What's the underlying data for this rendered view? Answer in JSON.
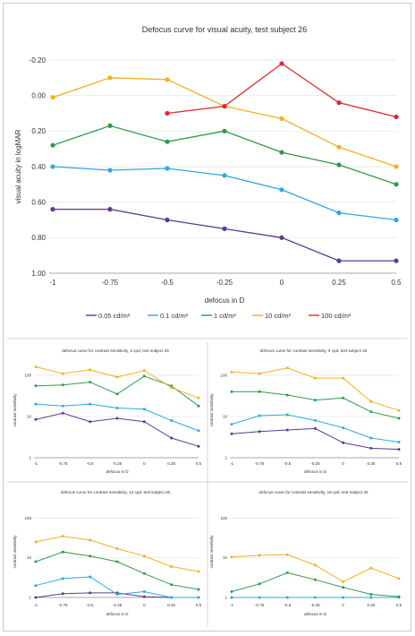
{
  "colors": {
    "purple": "#5b3b8c",
    "blue": "#2fa8e0",
    "green": "#2e9b4a",
    "yellow": "#f2b21f",
    "red": "#e0282e",
    "grid": "#e3e3e3",
    "axis": "#aaaaaa",
    "text": "#333333"
  },
  "chart_data": [
    {
      "type": "line",
      "title": "Defocus curve for visual acuity, test subject 26",
      "xlabel": "defocus in D",
      "ylabel": "visual acuity in logMAR",
      "y_reversed": true,
      "ylim": [
        -0.2,
        1.0
      ],
      "yticks": [
        -0.2,
        0.0,
        0.2,
        0.4,
        0.6,
        0.8,
        1.0
      ],
      "ytick_labels": [
        "-0.20",
        "0.00",
        "0.20",
        "0.40",
        "0.60",
        "0.80",
        "1.00"
      ],
      "x": [
        -1,
        -0.75,
        -0.5,
        -0.25,
        0,
        0.25,
        0.5
      ],
      "xtick_labels": [
        "-1",
        "-0.75",
        "-0.5",
        "-0.25",
        "0",
        "0.25",
        "0.5"
      ],
      "grid": true,
      "legend_position": "bottom",
      "series": [
        {
          "name": "0.05 cd/m²",
          "color": "purple",
          "values": [
            0.64,
            0.64,
            0.7,
            0.75,
            0.8,
            0.93,
            0.93
          ]
        },
        {
          "name": "0.1 cd/m²",
          "color": "blue",
          "values": [
            0.4,
            0.42,
            0.41,
            0.45,
            0.53,
            0.66,
            0.7
          ]
        },
        {
          "name": "1 cd/m²",
          "color": "green",
          "values": [
            0.28,
            0.17,
            0.26,
            0.2,
            0.32,
            0.39,
            0.5
          ]
        },
        {
          "name": "10 cd/m²",
          "color": "yellow",
          "values": [
            0.01,
            -0.1,
            -0.09,
            0.06,
            0.13,
            0.29,
            0.4
          ]
        },
        {
          "name": "100 cd/m²",
          "color": "red",
          "values": [
            null,
            null,
            0.1,
            0.06,
            -0.18,
            0.04,
            0.12
          ]
        }
      ]
    },
    {
      "type": "line",
      "title": "defocus curve for contrast sensitivity, 3 cpd, test subject 26",
      "xlabel": "defocus in D",
      "ylabel": "contrast sensitivity",
      "yscale": "log",
      "ylim": [
        1,
        200
      ],
      "yticks": [
        1,
        10,
        100
      ],
      "ytick_labels": [
        "1",
        "10",
        "100"
      ],
      "x": [
        -1,
        -0.75,
        -0.5,
        -0.25,
        0,
        0.25,
        0.5
      ],
      "xtick_labels": [
        "-1",
        "-0.75",
        "-0.5",
        "-0.25",
        "0",
        "0.25",
        "0.5"
      ],
      "series": [
        {
          "color": "purple",
          "values": [
            8.5,
            12,
            7.5,
            9,
            7.5,
            3,
            1.9
          ]
        },
        {
          "color": "blue",
          "values": [
            20,
            18,
            20,
            16,
            15,
            8,
            4.5
          ]
        },
        {
          "color": "green",
          "values": [
            55,
            58,
            68,
            35,
            95,
            55,
            18
          ]
        },
        {
          "color": "yellow",
          "values": [
            160,
            110,
            135,
            90,
            130,
            50,
            28
          ]
        }
      ]
    },
    {
      "type": "line",
      "title": "defocus curve for contrast sensitivity, 6 cpd, test subject 26",
      "xlabel": "defocus in D",
      "ylabel": "contrast sensitivity",
      "yscale": "log",
      "ylim": [
        1,
        200
      ],
      "yticks": [
        1,
        10,
        100
      ],
      "ytick_labels": [
        "1",
        "10",
        "100"
      ],
      "x": [
        -1,
        -0.75,
        -0.5,
        -0.25,
        0,
        0.25,
        0.5
      ],
      "xtick_labels": [
        "-1",
        "-0.75",
        "-0.5",
        "-0.25",
        "0",
        "0.25",
        "0.5"
      ],
      "series": [
        {
          "color": "purple",
          "values": [
            3.8,
            4.3,
            4.7,
            5.1,
            2.3,
            1.7,
            1.6
          ]
        },
        {
          "color": "blue",
          "values": [
            6.5,
            10.5,
            11,
            8,
            5.3,
            3,
            2.4
          ]
        },
        {
          "color": "green",
          "values": [
            40,
            40,
            33,
            25,
            28,
            13,
            9
          ]
        },
        {
          "color": "yellow",
          "values": [
            120,
            110,
            150,
            85,
            85,
            23,
            14
          ]
        }
      ]
    },
    {
      "type": "line",
      "title": "defocus curve for contrast sensitivity, 12 cpd, test subject 26",
      "xlabel": "defocus in D",
      "ylabel": "contrast sensitivity",
      "yscale": "log",
      "ylim": [
        1,
        200
      ],
      "yticks": [
        1,
        10,
        100
      ],
      "ytick_labels": [
        "1",
        "10",
        "100"
      ],
      "x": [
        -1,
        -0.75,
        -0.5,
        -0.25,
        0,
        0.25,
        0.5
      ],
      "xtick_labels": [
        "-1",
        "-0.75",
        "-0.5",
        "-0.25",
        "0",
        "0.25",
        "0.5"
      ],
      "series": [
        {
          "color": "purple",
          "values": [
            1,
            1.25,
            1.3,
            1.3,
            1.05,
            1,
            1
          ]
        },
        {
          "color": "blue",
          "values": [
            2,
            3,
            3.3,
            1.2,
            1.4,
            1,
            1
          ]
        },
        {
          "color": "green",
          "values": [
            8,
            14,
            11,
            8,
            4,
            2.1,
            1.6
          ]
        },
        {
          "color": "yellow",
          "values": [
            25,
            35,
            28,
            17,
            11,
            6,
            4.5
          ]
        }
      ]
    },
    {
      "type": "line",
      "title": "defocus curve for contrast sensitivity, 18 cpd, test subject 26",
      "xlabel": "defocus in D",
      "ylabel": "contrast sensitivity",
      "yscale": "log",
      "ylim": [
        1,
        200
      ],
      "yticks": [
        1,
        10,
        100
      ],
      "ytick_labels": [
        "1",
        "10",
        "100"
      ],
      "x": [
        -1,
        -0.75,
        -0.5,
        -0.25,
        0,
        0.25,
        0.5
      ],
      "xtick_labels": [
        "-1",
        "-0.75",
        "-0.5",
        "-0.25",
        "0",
        "0.25",
        "0.5"
      ],
      "series": [
        {
          "color": "blue",
          "values": [
            1,
            1,
            1,
            1,
            1,
            1,
            1
          ]
        },
        {
          "color": "green",
          "values": [
            1.4,
            2.2,
            4.2,
            2.8,
            1.8,
            1.2,
            1.05
          ]
        },
        {
          "color": "yellow",
          "values": [
            10.5,
            11.5,
            12,
            6.5,
            2.5,
            5.5,
            3
          ]
        }
      ]
    }
  ]
}
